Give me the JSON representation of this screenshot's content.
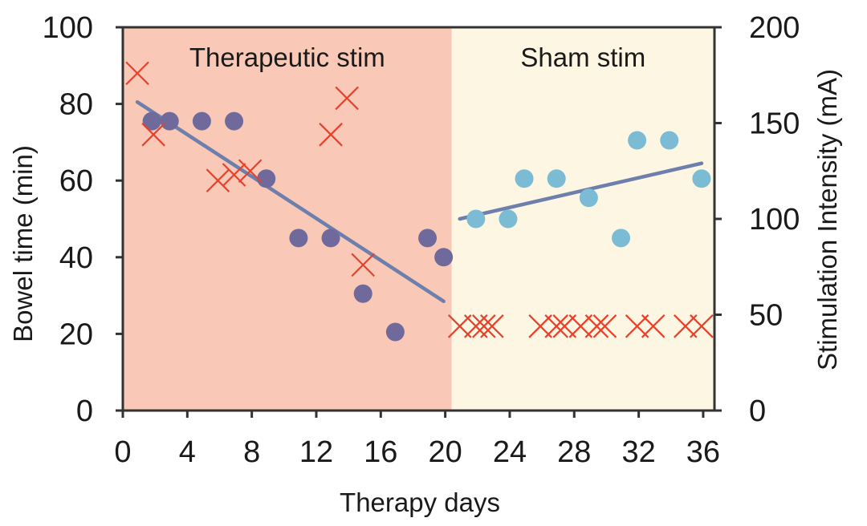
{
  "chart_data": {
    "type": "scatter",
    "xlabel": "Therapy days",
    "ylabel_left": "Bowel time (min)",
    "ylabel_right": "Stimulation Intensity (mA)",
    "xlim": [
      0,
      36.7
    ],
    "ylim_left": [
      0,
      100
    ],
    "ylim_right": [
      0,
      200
    ],
    "x_ticks": [
      0,
      4,
      8,
      12,
      16,
      20,
      24,
      28,
      32,
      36
    ],
    "y_ticks_left": [
      0,
      20,
      40,
      60,
      80,
      100
    ],
    "y_ticks_right": [
      0,
      50,
      100,
      150,
      200
    ],
    "regions": [
      {
        "label": "Therapeutic stim",
        "x_start": 0,
        "x_end": 20.4,
        "color": "#f9c8b6"
      },
      {
        "label": "Sham stim",
        "x_start": 20.4,
        "x_end": 36.7,
        "color": "#fcf6e2"
      }
    ],
    "series": [
      {
        "axis": "left",
        "marker": "circle",
        "color": "#6f6a9b",
        "points": [
          [
            1.8,
            75.5
          ],
          [
            2.9,
            75.5
          ],
          [
            4.9,
            75.5
          ],
          [
            6.9,
            75.5
          ],
          [
            8.9,
            60.5
          ],
          [
            10.9,
            45
          ],
          [
            12.9,
            45
          ],
          [
            14.9,
            30.5
          ],
          [
            16.9,
            20.5
          ],
          [
            18.9,
            45
          ],
          [
            19.9,
            40
          ]
        ]
      },
      {
        "axis": "left",
        "marker": "circle",
        "color": "#7bbbd3",
        "points": [
          [
            21.9,
            50
          ],
          [
            23.9,
            50
          ],
          [
            24.9,
            60.5
          ],
          [
            26.9,
            60.5
          ],
          [
            28.9,
            55.5
          ],
          [
            30.9,
            45
          ],
          [
            31.9,
            70.5
          ],
          [
            33.9,
            70.5
          ],
          [
            35.9,
            60.5
          ]
        ]
      },
      {
        "axis": "right",
        "marker": "x",
        "color": "#e8412b",
        "points": [
          [
            0.9,
            176
          ],
          [
            1.9,
            144
          ],
          [
            5.9,
            120
          ],
          [
            6.9,
            123
          ],
          [
            7.9,
            125
          ],
          [
            12.9,
            144
          ],
          [
            13.9,
            163
          ],
          [
            14.9,
            76
          ]
        ]
      },
      {
        "axis": "right",
        "marker": "x",
        "color": "#e8412b",
        "points": [
          [
            20.9,
            44
          ],
          [
            21.9,
            44
          ],
          [
            22.4,
            44
          ],
          [
            22.9,
            44
          ],
          [
            25.9,
            44
          ],
          [
            26.9,
            44
          ],
          [
            27.4,
            44
          ],
          [
            28.4,
            44
          ],
          [
            29.4,
            44
          ],
          [
            29.9,
            44
          ],
          [
            31.9,
            44
          ],
          [
            32.9,
            44
          ],
          [
            34.9,
            44
          ],
          [
            35.9,
            44
          ]
        ]
      }
    ],
    "trendlines": [
      {
        "axis": "left",
        "color": "#6d7fad",
        "from": [
          0.9,
          80.5
        ],
        "to": [
          19.9,
          28.5
        ]
      },
      {
        "axis": "left",
        "color": "#6d7fad",
        "from": [
          20.9,
          50
        ],
        "to": [
          35.9,
          64.5
        ]
      }
    ]
  }
}
